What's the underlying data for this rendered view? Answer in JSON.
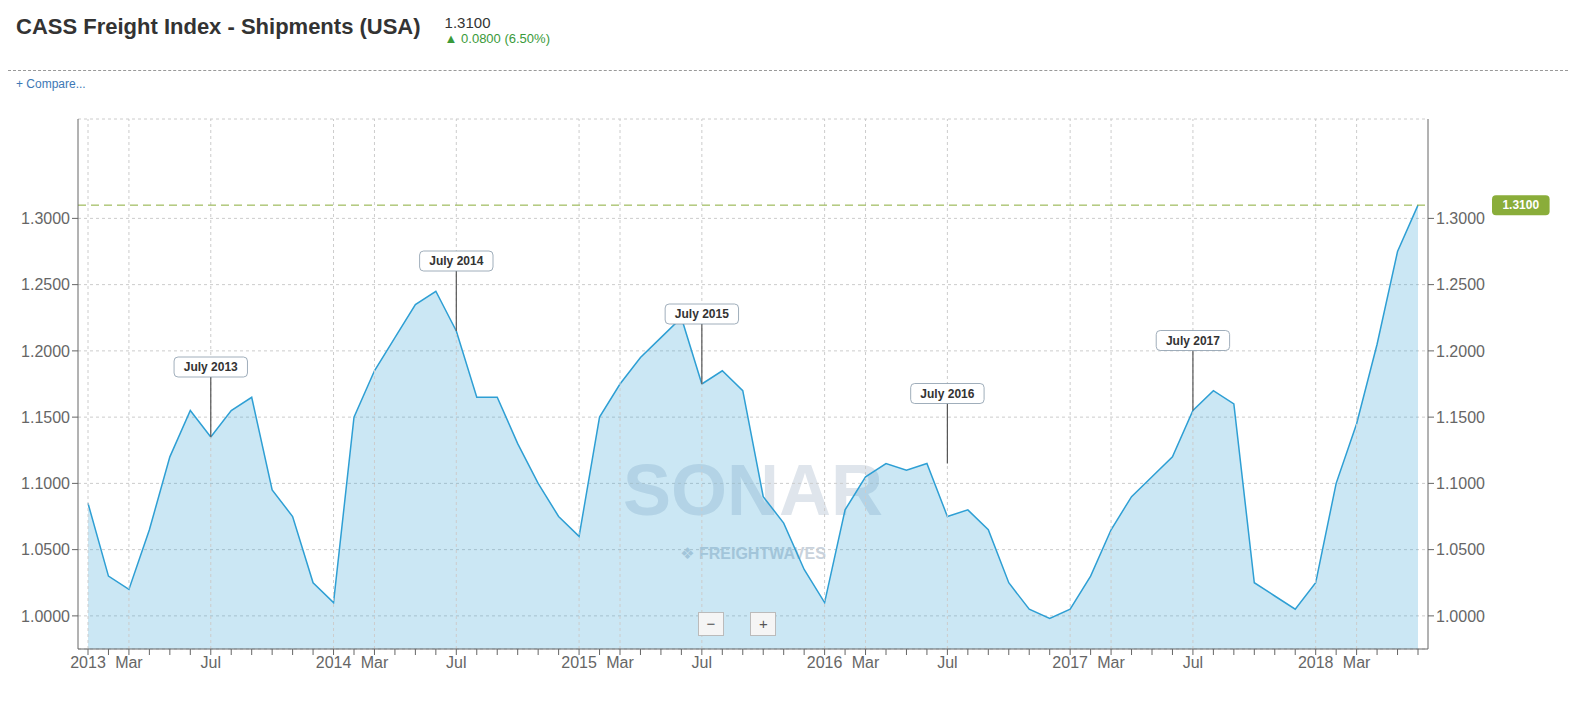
{
  "chart_data": {
    "type": "area",
    "title": "CASS Freight Index - Shipments (USA)",
    "subtitle": "1.3100",
    "categories": [
      "2013",
      null,
      "Mar",
      null,
      null,
      null,
      "Jul",
      null,
      null,
      null,
      null,
      null,
      "2014",
      null,
      "Mar",
      null,
      null,
      null,
      "Jul",
      null,
      null,
      null,
      null,
      null,
      "2015",
      null,
      "Mar",
      null,
      null,
      null,
      "Jul",
      null,
      null,
      null,
      null,
      null,
      "2016",
      null,
      "Mar",
      null,
      null,
      null,
      "Jul",
      null,
      null,
      null,
      null,
      null,
      "2017",
      null,
      "Mar",
      null,
      null,
      null,
      "Jul",
      null,
      null,
      null,
      null,
      null,
      "2018",
      null,
      "Mar",
      null,
      null,
      null
    ],
    "values": [
      1.085,
      1.03,
      1.02,
      1.065,
      1.12,
      1.155,
      1.135,
      1.155,
      1.165,
      1.095,
      1.075,
      1.025,
      1.01,
      1.15,
      1.185,
      1.21,
      1.235,
      1.245,
      1.215,
      1.165,
      1.165,
      1.13,
      1.1,
      1.075,
      1.06,
      1.15,
      1.175,
      1.195,
      1.21,
      1.225,
      1.175,
      1.185,
      1.17,
      1.09,
      1.07,
      1.035,
      1.01,
      1.08,
      1.105,
      1.115,
      1.11,
      1.115,
      1.075,
      1.08,
      1.065,
      1.025,
      1.005,
      0.998,
      1.005,
      1.03,
      1.065,
      1.09,
      1.105,
      1.12,
      1.155,
      1.17,
      1.16,
      1.025,
      1.015,
      1.005,
      1.025,
      1.1,
      1.145,
      1.205,
      1.275,
      1.31
    ],
    "color": "#2e9fd4",
    "ylim": [
      0.975,
      1.375
    ],
    "yticks": [
      {
        "value": 1.0,
        "label": "1.0000"
      },
      {
        "value": 1.05,
        "label": "1.0500"
      },
      {
        "value": 1.1,
        "label": "1.1000"
      },
      {
        "value": 1.15,
        "label": "1.1500"
      },
      {
        "value": 1.2,
        "label": "1.2000"
      },
      {
        "value": 1.25,
        "label": "1.2500"
      },
      {
        "value": 1.3,
        "label": "1.3000"
      }
    ],
    "y2lim": [
      0.975,
      1.375
    ],
    "y2ticks": [
      {
        "value": 1.0,
        "label": "1.0000"
      },
      {
        "value": 1.05,
        "label": "1.0500"
      },
      {
        "value": 1.1,
        "label": "1.1000"
      },
      {
        "value": 1.15,
        "label": "1.1500"
      },
      {
        "value": 1.2,
        "label": "1.2000"
      },
      {
        "value": 1.25,
        "label": "1.2500"
      },
      {
        "value": 1.3,
        "label": "1.3000"
      }
    ],
    "grid": true,
    "reference_lines": [
      {
        "y": 1.31,
        "label": "1.3100",
        "line_style": "dashed",
        "color": "#8aad3a"
      }
    ],
    "annotations": [
      {
        "text": "July 2013",
        "x": 6,
        "y": 1.135
      },
      {
        "text": "July 2014",
        "x": 18,
        "y": 1.215
      },
      {
        "text": "July 2015",
        "x": 30,
        "y": 1.175
      },
      {
        "text": "July 2016",
        "x": 42,
        "y": 1.115
      },
      {
        "text": "July 2017",
        "x": 54,
        "y": 1.155
      },
      {
        "text": "▲ 0.0800 (6.50%)"
      },
      {
        "text": "+ Compare..."
      },
      {
        "text": "SONAR"
      },
      {
        "text": "❖ FREIGHTWAVES"
      },
      {
        "text": "−"
      },
      {
        "text": "+"
      }
    ]
  }
}
